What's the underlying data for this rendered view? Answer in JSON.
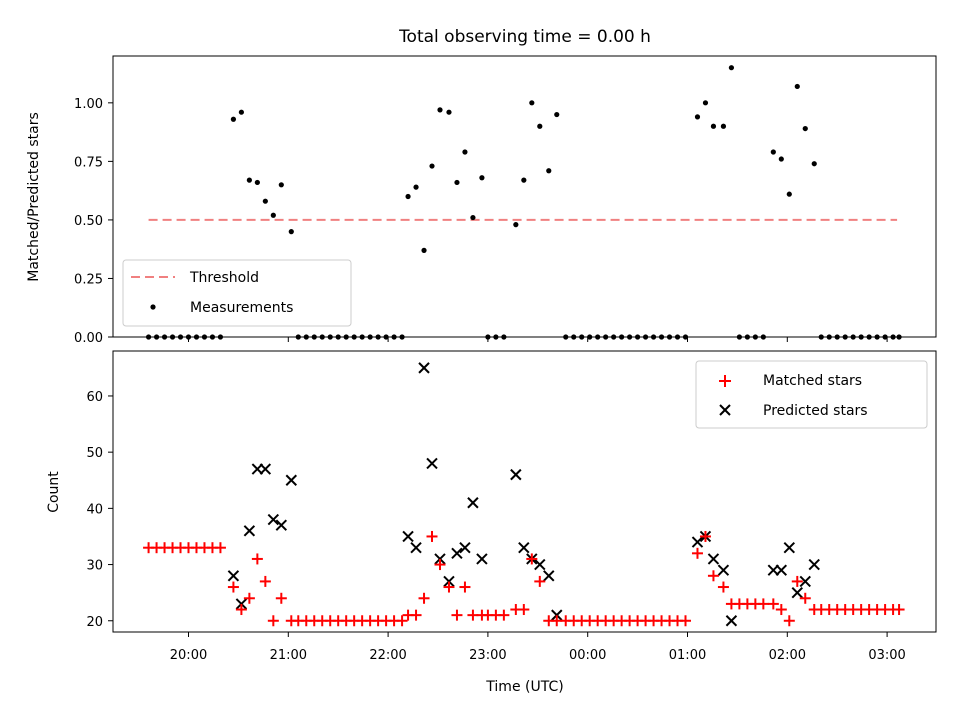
{
  "figure": {
    "title": "Total observing time = 0.00 h",
    "xlabel": "Time (UTC)",
    "x_ticks": [
      "20:00",
      "21:00",
      "22:00",
      "23:00",
      "00:00",
      "01:00",
      "02:00",
      "03:00"
    ],
    "colors": {
      "threshold": "#f08080",
      "matched": "#ff0000",
      "predicted": "#000000",
      "measurements": "#000000"
    }
  },
  "chart_data": [
    {
      "type": "scatter",
      "panel": "top",
      "ylabel": "Matched/Predicted stars",
      "ylim": [
        0,
        1.2
      ],
      "y_ticks": [
        "0.00",
        "0.25",
        "0.50",
        "0.75",
        "1.00"
      ],
      "x_unit": "hours after 20:00 UTC",
      "threshold": {
        "name": "Threshold",
        "value": 0.5,
        "x_range": [
          -0.4,
          7.1
        ]
      },
      "legend": {
        "location": "lower left",
        "entries": [
          "Threshold",
          "Measurements"
        ]
      },
      "series": [
        {
          "name": "Measurements",
          "x": [
            -0.4,
            -0.32,
            -0.24,
            -0.16,
            -0.08,
            0.0,
            0.08,
            0.16,
            0.24,
            0.32,
            0.45,
            0.53,
            0.61,
            0.69,
            0.77,
            0.85,
            0.93,
            1.03,
            1.1,
            1.18,
            1.26,
            1.34,
            1.42,
            1.5,
            1.58,
            1.66,
            1.74,
            1.82,
            1.9,
            1.98,
            2.06,
            2.14,
            2.2,
            2.28,
            2.36,
            2.44,
            2.52,
            2.61,
            2.69,
            2.77,
            2.85,
            2.94,
            3.0,
            3.08,
            3.16,
            3.28,
            3.36,
            3.44,
            3.52,
            3.61,
            3.69,
            3.78,
            3.86,
            3.94,
            4.02,
            4.1,
            4.18,
            4.26,
            4.34,
            4.42,
            4.5,
            4.58,
            4.66,
            4.74,
            4.82,
            4.9,
            4.98,
            5.1,
            5.18,
            5.26,
            5.36,
            5.44,
            5.52,
            5.6,
            5.68,
            5.76,
            5.86,
            5.94,
            6.02,
            6.1,
            6.18,
            6.27,
            6.34,
            6.42,
            6.5,
            6.58,
            6.66,
            6.74,
            6.82,
            6.9,
            6.98,
            7.06,
            7.12
          ],
          "y": [
            0,
            0,
            0,
            0,
            0,
            0,
            0,
            0,
            0,
            0,
            0.93,
            0.96,
            0.67,
            0.66,
            0.58,
            0.52,
            0.65,
            0.45,
            0,
            0,
            0,
            0,
            0,
            0,
            0,
            0,
            0,
            0,
            0,
            0,
            0,
            0,
            0.6,
            0.64,
            0.37,
            0.73,
            0.97,
            0.96,
            0.66,
            0.79,
            0.51,
            0.68,
            0,
            0,
            0,
            0.48,
            0.67,
            1.0,
            0.9,
            0.71,
            0.95,
            0,
            0,
            0,
            0,
            0,
            0,
            0,
            0,
            0,
            0,
            0,
            0,
            0,
            0,
            0,
            0,
            0.94,
            1.0,
            0.9,
            0.9,
            1.15,
            0,
            0,
            0,
            0,
            0.79,
            0.76,
            0.61,
            1.07,
            0.89,
            0.74,
            0,
            0,
            0,
            0,
            0,
            0,
            0,
            0,
            0,
            0,
            0
          ]
        }
      ]
    },
    {
      "type": "scatter",
      "panel": "bottom",
      "ylabel": "Count",
      "ylim": [
        18,
        68
      ],
      "y_ticks": [
        "20",
        "30",
        "40",
        "50",
        "60"
      ],
      "x_unit": "hours after 20:00 UTC",
      "legend": {
        "location": "upper right",
        "entries": [
          "Matched stars",
          "Predicted stars"
        ]
      },
      "series": [
        {
          "name": "Matched stars",
          "x": [
            -0.4,
            -0.32,
            -0.24,
            -0.16,
            -0.08,
            0.0,
            0.08,
            0.16,
            0.24,
            0.32,
            0.45,
            0.53,
            0.61,
            0.69,
            0.77,
            0.85,
            0.93,
            1.03,
            1.1,
            1.18,
            1.26,
            1.34,
            1.42,
            1.5,
            1.58,
            1.66,
            1.74,
            1.82,
            1.9,
            1.98,
            2.06,
            2.14,
            2.2,
            2.28,
            2.36,
            2.44,
            2.52,
            2.61,
            2.69,
            2.77,
            2.85,
            2.94,
            3.0,
            3.08,
            3.16,
            3.28,
            3.36,
            3.44,
            3.52,
            3.61,
            3.69,
            3.78,
            3.86,
            3.94,
            4.02,
            4.1,
            4.18,
            4.26,
            4.34,
            4.42,
            4.5,
            4.58,
            4.66,
            4.74,
            4.82,
            4.9,
            4.98,
            5.1,
            5.18,
            5.26,
            5.36,
            5.44,
            5.52,
            5.6,
            5.68,
            5.76,
            5.86,
            5.94,
            6.02,
            6.1,
            6.18,
            6.27,
            6.34,
            6.42,
            6.5,
            6.58,
            6.66,
            6.74,
            6.82,
            6.9,
            6.98,
            7.06,
            7.12
          ],
          "y": [
            33,
            33,
            33,
            33,
            33,
            33,
            33,
            33,
            33,
            33,
            26,
            22,
            24,
            31,
            27,
            20,
            24,
            20,
            20,
            20,
            20,
            20,
            20,
            20,
            20,
            20,
            20,
            20,
            20,
            20,
            20,
            20,
            21,
            21,
            24,
            35,
            30,
            26,
            21,
            26,
            21,
            21,
            21,
            21,
            21,
            22,
            22,
            31,
            27,
            20,
            20,
            20,
            20,
            20,
            20,
            20,
            20,
            20,
            20,
            20,
            20,
            20,
            20,
            20,
            20,
            20,
            20,
            32,
            35,
            28,
            26,
            23,
            23,
            23,
            23,
            23,
            23,
            22,
            20,
            27,
            24,
            22,
            22,
            22,
            22,
            22,
            22,
            22,
            22,
            22,
            22,
            22,
            22
          ]
        },
        {
          "name": "Predicted stars",
          "x": [
            0.45,
            0.53,
            0.61,
            0.69,
            0.77,
            0.85,
            0.93,
            1.03,
            2.2,
            2.28,
            2.36,
            2.44,
            2.52,
            2.61,
            2.69,
            2.77,
            2.85,
            2.94,
            3.28,
            3.36,
            3.44,
            3.52,
            3.61,
            3.69,
            5.1,
            5.18,
            5.26,
            5.36,
            5.44,
            5.86,
            5.94,
            6.02,
            6.1,
            6.18,
            6.27
          ],
          "y": [
            28,
            23,
            36,
            47,
            47,
            38,
            37,
            45,
            35,
            33,
            65,
            48,
            31,
            27,
            32,
            33,
            41,
            31,
            46,
            33,
            31,
            30,
            28,
            21,
            34,
            35,
            31,
            29,
            20,
            29,
            29,
            33,
            25,
            27,
            30
          ]
        }
      ]
    }
  ]
}
